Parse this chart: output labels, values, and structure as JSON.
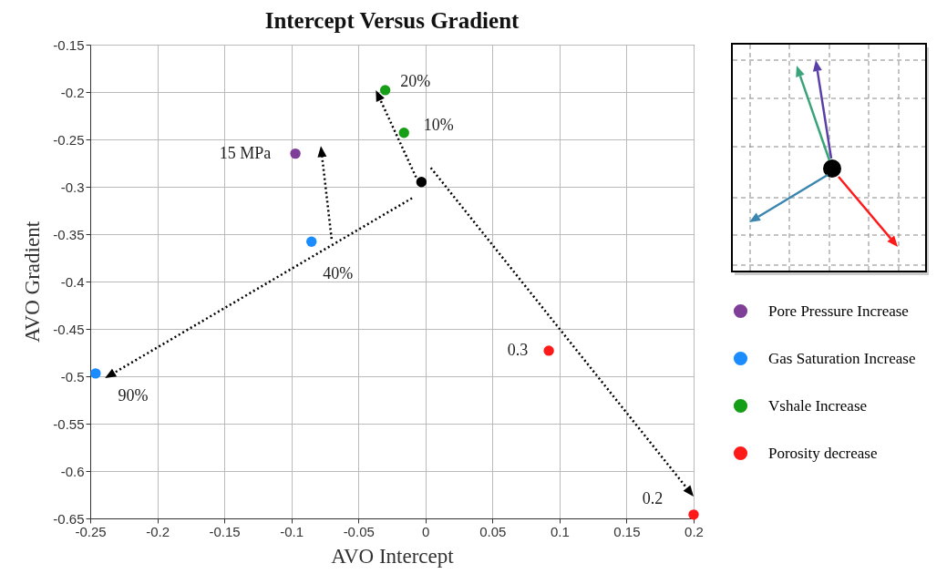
{
  "chart_data": {
    "type": "scatter",
    "title": "Intercept Versus Gradient",
    "xlabel": "AVO Intercept",
    "ylabel": "AVO Gradient",
    "xlim": [
      -0.25,
      0.2
    ],
    "ylim": [
      -0.65,
      -0.15
    ],
    "xticks": [
      -0.25,
      -0.2,
      -0.15,
      -0.1,
      -0.05,
      0,
      0.05,
      0.1,
      0.15,
      0.2
    ],
    "yticks": [
      -0.65,
      -0.6,
      -0.55,
      -0.5,
      -0.45,
      -0.4,
      -0.35,
      -0.3,
      -0.25,
      -0.2,
      -0.15
    ],
    "grid": true,
    "legend": "right",
    "marker": "circle",
    "series": [
      {
        "name": "Pore Pressure Increase",
        "color": "#7f3f98",
        "x": [
          -0.097
        ],
        "values": [
          -0.265
        ]
      },
      {
        "name": "Gas Saturation Increase",
        "color": "#1a8cff",
        "x": [
          -0.085,
          -0.246
        ],
        "values": [
          -0.358,
          -0.497
        ]
      },
      {
        "name": "Vshale Increase",
        "color": "#169e16",
        "x": [
          -0.03,
          -0.016
        ],
        "values": [
          -0.198,
          -0.243
        ]
      },
      {
        "name": "Porosity decrease",
        "color": "#ff1a1a",
        "x": [
          0.092,
          0.2
        ],
        "values": [
          -0.473,
          -0.646
        ]
      },
      {
        "color": "#000000",
        "x": [
          -0.003
        ],
        "values": [
          -0.295
        ]
      }
    ],
    "annotations": [
      {
        "text": "20%",
        "x": -0.03,
        "y": -0.198
      },
      {
        "text": "10%",
        "x": -0.016,
        "y": -0.243
      },
      {
        "text": "15 MPa",
        "x": -0.097,
        "y": -0.265
      },
      {
        "text": "40%",
        "x": -0.085,
        "y": -0.358
      },
      {
        "text": "90%",
        "x": -0.246,
        "y": -0.497
      },
      {
        "text": "0.3",
        "x": 0.092,
        "y": -0.473
      },
      {
        "text": "0.2",
        "x": 0.2,
        "y": -0.646
      }
    ]
  }
}
